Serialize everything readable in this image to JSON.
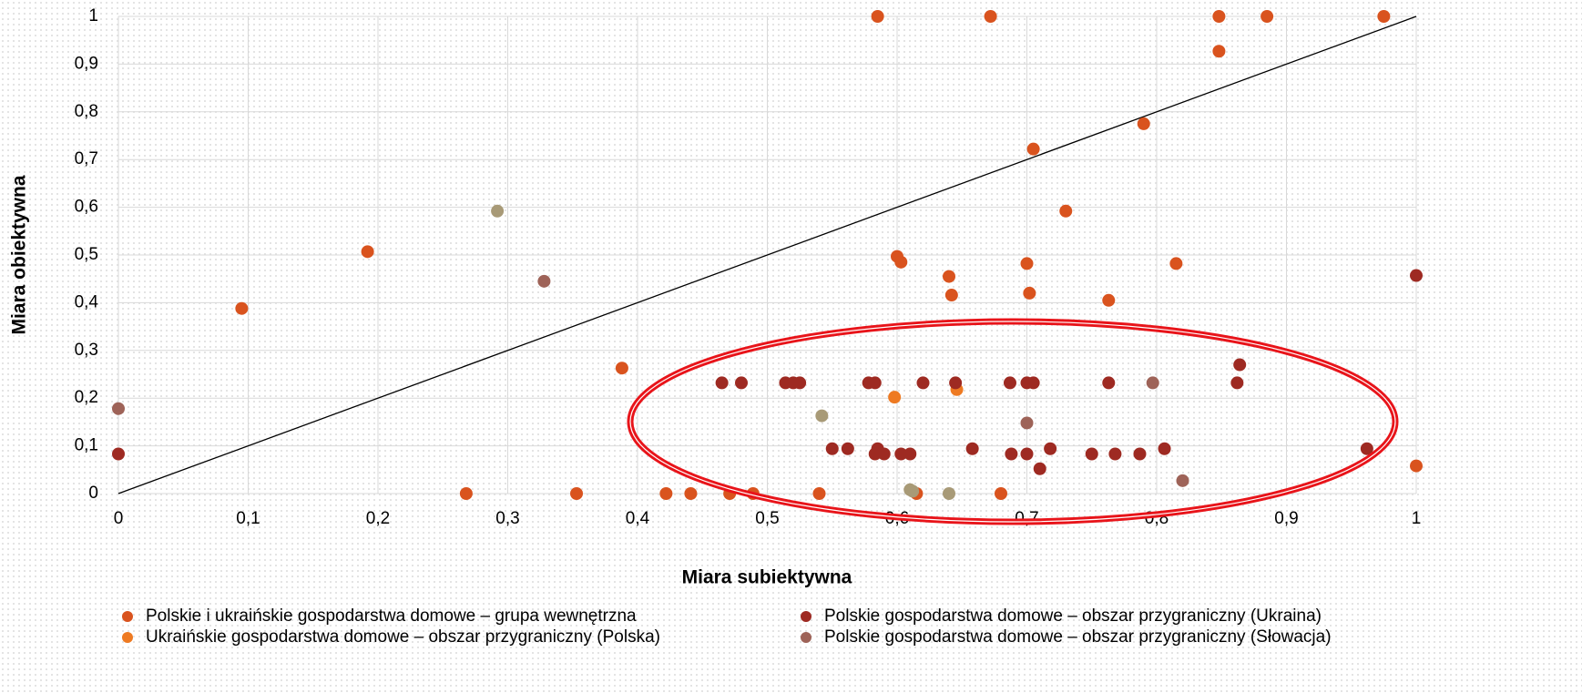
{
  "chart_data": {
    "type": "scatter",
    "xlabel": "Miara subiektywna",
    "ylabel": "Miara obiektywna",
    "xlim": [
      0,
      1
    ],
    "ylim": [
      0,
      1
    ],
    "xticks": [
      0,
      {
        "value": 0.1,
        "label": "0,1"
      },
      {
        "value": 0.2,
        "label": "0,2"
      },
      {
        "value": 0.3,
        "label": "0,3"
      },
      {
        "value": 0.4,
        "label": "0,4"
      },
      {
        "value": 0.5,
        "label": "0,5"
      },
      {
        "value": 0.6,
        "label": "0,6"
      },
      {
        "value": 0.7,
        "label": "0,7"
      },
      {
        "value": 0.8,
        "label": "0,8"
      },
      {
        "value": 0.9,
        "label": "0,9"
      },
      1
    ],
    "yticks": [
      0,
      {
        "value": 0.1,
        "label": "0,1"
      },
      {
        "value": 0.2,
        "label": "0,2"
      },
      {
        "value": 0.3,
        "label": "0,3"
      },
      {
        "value": 0.4,
        "label": "0,4"
      },
      {
        "value": 0.5,
        "label": "0,5"
      },
      {
        "value": 0.6,
        "label": "0,6"
      },
      {
        "value": 0.7,
        "label": "0,7"
      },
      {
        "value": 0.8,
        "label": "0,8"
      },
      {
        "value": 0.9,
        "label": "0,9"
      },
      1
    ],
    "grid": true,
    "series": [
      {
        "name": "Polskie i ukraińskie gospodarstwa domowe – grupa wewnętrzna",
        "color": "#d9531e",
        "x": [
          0.585,
          0.672,
          0.848,
          0.885,
          0.975,
          0.848,
          0.79,
          0.705,
          0.73,
          0.192,
          0.095,
          0.6,
          0.603,
          0.7,
          0.815,
          0.64,
          0.642,
          0.702,
          0.763,
          0.388,
          0.268,
          0.353,
          0.422,
          0.441,
          0.471,
          0.489,
          0.54,
          0.615,
          0.68,
          1
        ],
        "values": [
          1,
          1,
          1,
          1,
          1,
          0.927,
          0.775,
          0.722,
          0.592,
          0.507,
          0.388,
          0.497,
          0.485,
          0.482,
          0.482,
          0.455,
          0.416,
          0.42,
          0.405,
          0.263,
          0,
          0,
          0,
          0,
          0,
          0,
          0,
          0,
          0,
          0.058
        ]
      },
      {
        "name": "Ukraińskie gospodarstwa domowe – obszar przygraniczny (Polska)",
        "color": "#ee7a22",
        "x": [
          0.598,
          0.646
        ],
        "values": [
          0.202,
          0.218
        ]
      },
      {
        "name": "Polskie gospodarstwa domowe – obszar przygraniczny (Ukraina)",
        "color": "#9e2a22",
        "x": [
          0,
          0.465,
          0.48,
          0.514,
          0.52,
          0.525,
          0.578,
          0.583,
          0.62,
          0.645,
          0.687,
          0.7,
          0.705,
          0.763,
          0.862,
          0.864,
          1,
          0.55,
          0.562,
          0.585,
          0.583,
          0.59,
          0.603,
          0.61,
          0.658,
          0.688,
          0.7,
          0.718,
          0.71,
          0.75,
          0.768,
          0.787,
          0.806,
          0.962
        ],
        "values": [
          0.083,
          0.232,
          0.232,
          0.232,
          0.232,
          0.232,
          0.232,
          0.232,
          0.232,
          0.232,
          0.232,
          0.232,
          0.232,
          0.232,
          0.232,
          0.27,
          0.457,
          0.094,
          0.094,
          0.094,
          0.083,
          0.083,
          0.083,
          0.083,
          0.094,
          0.083,
          0.083,
          0.094,
          0.052,
          0.083,
          0.083,
          0.083,
          0.094,
          0.094
        ]
      },
      {
        "name": "Polskie gospodarstwa domowe – obszar przygraniczny (Słowacja)",
        "color": "#9e6358",
        "x": [
          0,
          0.328,
          0.7,
          0.797,
          0.82
        ],
        "values": [
          0.178,
          0.445,
          0.148,
          0.232,
          0.027
        ]
      },
      {
        "color": "#a89a77",
        "x": [
          0.292,
          0.542,
          0.61,
          0.64,
          0.612
        ],
        "values": [
          0.592,
          0.163,
          0.008,
          0,
          0.005
        ]
      }
    ]
  }
}
